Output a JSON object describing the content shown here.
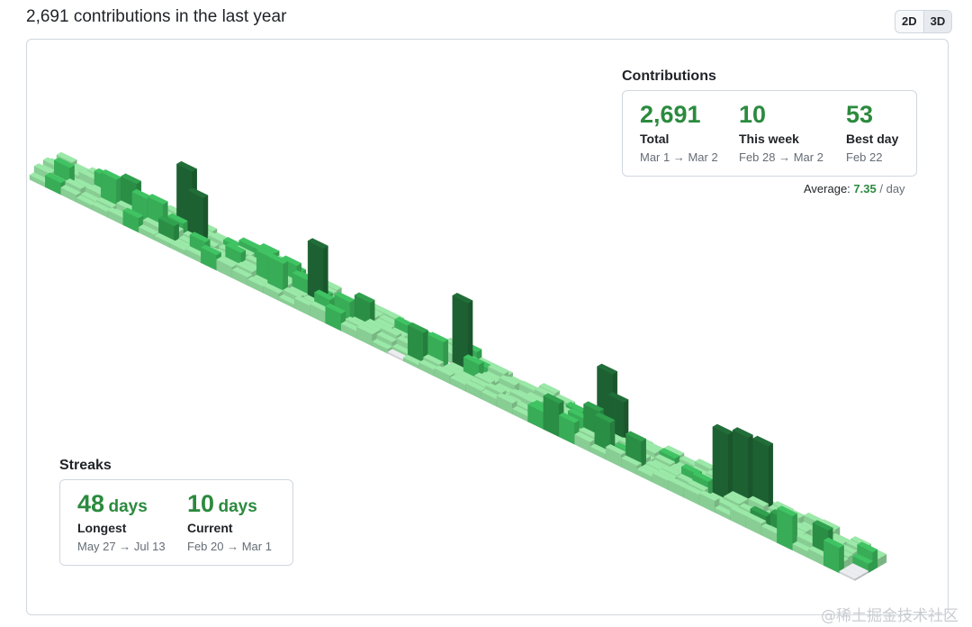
{
  "header": {
    "title": "2,691 contributions in the last year",
    "toggle": {
      "two_d": "2D",
      "three_d": "3D",
      "active": "3D"
    }
  },
  "contributions": {
    "heading": "Contributions",
    "total": {
      "value": "2,691",
      "label": "Total",
      "range": "Mar 1 → Mar 2"
    },
    "this_week": {
      "value": "10",
      "label": "This week",
      "range": "Feb 28 → Mar 2"
    },
    "best_day": {
      "value": "53",
      "label": "Best day",
      "range": "Feb 22"
    },
    "average": {
      "label": "Average:",
      "value": "7.35",
      "unit": "/ day"
    }
  },
  "streaks": {
    "heading": "Streaks",
    "longest": {
      "value": "48",
      "unit": "days",
      "label": "Longest",
      "range": "May 27 → Jul 13"
    },
    "current": {
      "value": "10",
      "unit": "days",
      "label": "Current",
      "range": "Feb 20 → Mar 1"
    }
  },
  "colors": {
    "level_1": "#9be9a8",
    "level_2": "#40c463",
    "level_3": "#30a14e",
    "level_4": "#216e39",
    "empty": "#ebedf0",
    "accent": "#2b8a3e"
  },
  "watermark": "@稀土掘金技术社区"
}
